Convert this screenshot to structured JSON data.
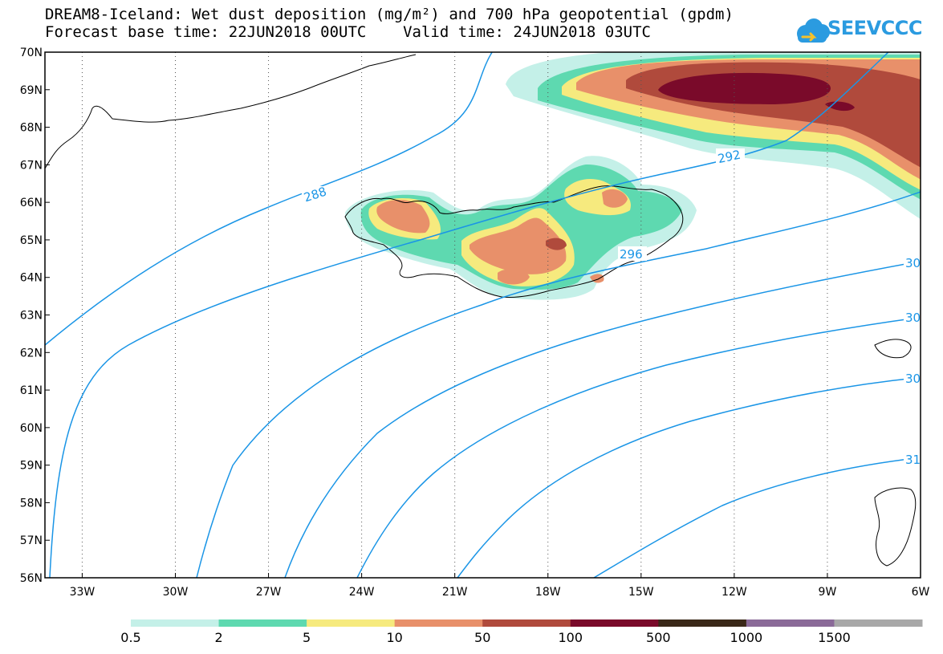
{
  "title": {
    "line1": "DREAM8-Iceland: Wet dust deposition (mg/m²) and 700 hPa geopotential (gpdm)",
    "line2": "Forecast base time: 22JUN2018 00UTC    Valid time: 24JUN2018 03UTC"
  },
  "logo": {
    "text": "SEEVCCC",
    "name": "cloud-icon"
  },
  "map": {
    "lat_labels": [
      "70N",
      "69N",
      "68N",
      "67N",
      "66N",
      "65N",
      "64N",
      "63N",
      "62N",
      "61N",
      "60N",
      "59N",
      "58N",
      "57N",
      "56N"
    ],
    "lon_labels": [
      "33W",
      "30W",
      "27W",
      "24W",
      "21W",
      "18W",
      "15W",
      "12W",
      "9W",
      "6W"
    ],
    "lat_range": [
      56,
      70
    ],
    "lon_range": [
      -34.2,
      -6
    ],
    "contour_labels": [
      "288",
      "292",
      "296",
      "30",
      "30",
      "30",
      "31"
    ],
    "contour_color": "#1a95e6"
  },
  "colorbar": {
    "labels": [
      "0.5",
      "2",
      "5",
      "10",
      "50",
      "100",
      "500",
      "1000",
      "1500"
    ],
    "colors": [
      "#c4f0e8",
      "#5ed9b0",
      "#f6ea7e",
      "#e8906a",
      "#b04a3c",
      "#7a0a2a",
      "#3a2818",
      "#8a6a98",
      "#a8a8a8"
    ]
  }
}
